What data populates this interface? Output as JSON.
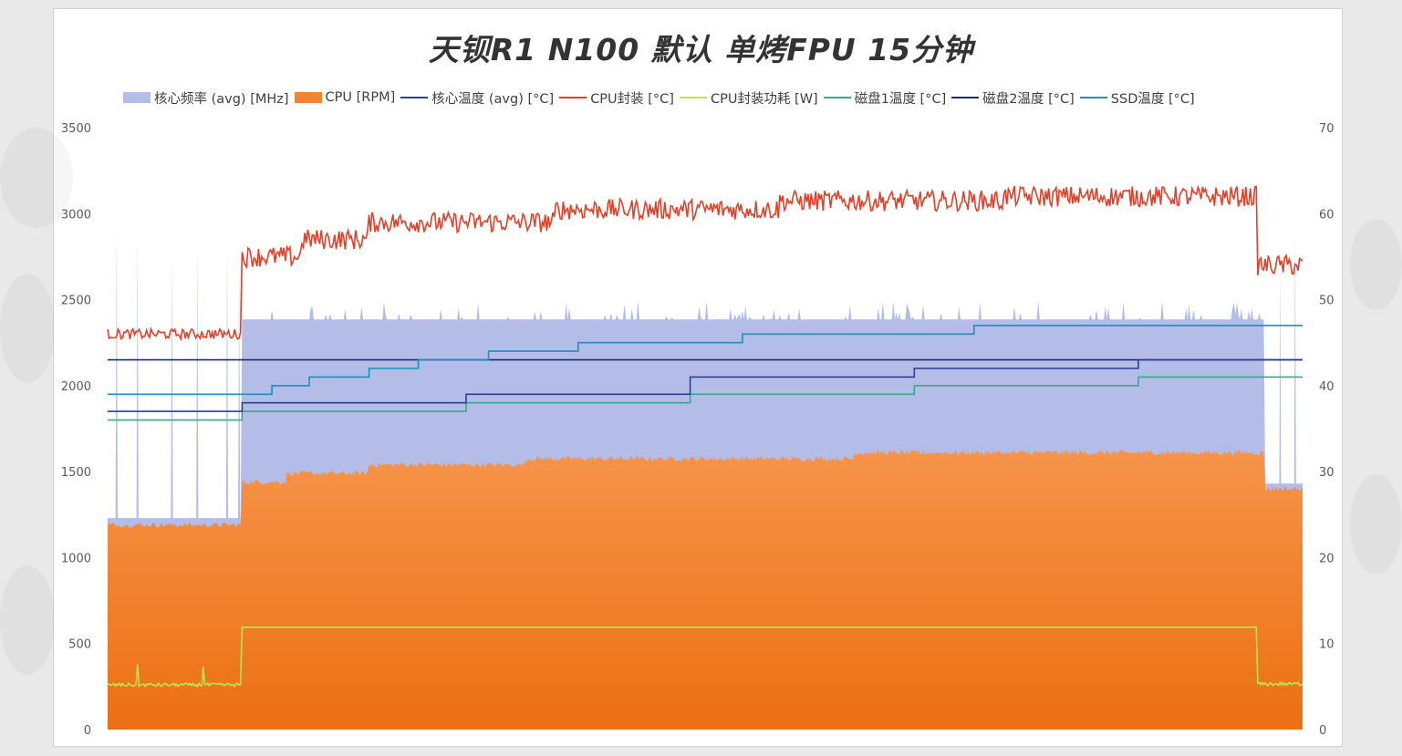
{
  "chart_data": {
    "type": "area",
    "title": "天钡R1 N100 默认 单烤FPU 15分钟",
    "xlabel": "",
    "ylabel_left": "",
    "ylabel_right": "",
    "ylim_left": [
      0,
      3500
    ],
    "ylim_right": [
      0,
      70
    ],
    "yticks_left": [
      "0",
      "500",
      "1000",
      "1500",
      "2000",
      "2500",
      "3000",
      "3500"
    ],
    "yticks_right": [
      "0",
      "10",
      "20",
      "30",
      "40",
      "50",
      "60",
      "70"
    ],
    "grid": false,
    "legend_position": "top",
    "x_points": 800,
    "series": [
      {
        "name": "核心频率 (avg) [MHz]",
        "type": "area",
        "axis": "left",
        "color": "#b4bde8",
        "segments": [
          {
            "from": 0,
            "to": 90,
            "value": 1230
          },
          {
            "from": 90,
            "to": 775,
            "value": 2385
          },
          {
            "from": 775,
            "to": 800,
            "value": 1430
          }
        ],
        "spikes": [
          {
            "x": 6,
            "value": 2900
          },
          {
            "x": 20,
            "value": 2850
          },
          {
            "x": 43,
            "value": 2750
          },
          {
            "x": 60,
            "value": 2800
          },
          {
            "x": 80,
            "value": 2820
          },
          {
            "x": 88,
            "value": 2700
          },
          {
            "x": 785,
            "value": 2700
          },
          {
            "x": 795,
            "value": 2880
          }
        ]
      },
      {
        "name": "CPU [RPM]",
        "type": "area",
        "axis": "left",
        "color": "#f28534",
        "segments": [
          {
            "from": 0,
            "to": 90,
            "value": 1190
          },
          {
            "from": 90,
            "to": 120,
            "value": 1440
          },
          {
            "from": 120,
            "to": 175,
            "value": 1490
          },
          {
            "from": 175,
            "to": 280,
            "value": 1540
          },
          {
            "from": 280,
            "to": 500,
            "value": 1575
          },
          {
            "from": 500,
            "to": 775,
            "value": 1610
          },
          {
            "from": 775,
            "to": 800,
            "value": 1400
          }
        ]
      },
      {
        "name": "核心温度 (avg) [°C]",
        "type": "step",
        "axis": "right",
        "color": "#2f3f8f",
        "steps": [
          {
            "from": 0,
            "to": 90,
            "value": 37
          },
          {
            "from": 90,
            "to": 240,
            "value": 38
          },
          {
            "from": 240,
            "to": 390,
            "value": 39
          },
          {
            "from": 390,
            "to": 540,
            "value": 41
          },
          {
            "from": 540,
            "to": 690,
            "value": 42
          },
          {
            "from": 690,
            "to": 800,
            "value": 43
          }
        ]
      },
      {
        "name": "CPU封装 [°C]",
        "type": "line",
        "axis": "right",
        "color": "#e0412a",
        "levels": [
          {
            "from": 0,
            "to": 90,
            "value": 46
          },
          {
            "from": 90,
            "to": 130,
            "value": 55
          },
          {
            "from": 130,
            "to": 175,
            "value": 57
          },
          {
            "from": 175,
            "to": 300,
            "value": 59
          },
          {
            "from": 300,
            "to": 450,
            "value": 60.5
          },
          {
            "from": 450,
            "to": 600,
            "value": 61.5
          },
          {
            "from": 600,
            "to": 770,
            "value": 62
          },
          {
            "from": 770,
            "to": 800,
            "value": 54
          }
        ]
      },
      {
        "name": "CPU封装功耗 [W]",
        "type": "line",
        "axis": "right",
        "color": "#b8e84c",
        "levels": [
          {
            "from": 0,
            "to": 90,
            "value": 5.2
          },
          {
            "from": 90,
            "to": 770,
            "value": 11.9
          },
          {
            "from": 770,
            "to": 800,
            "value": 5.3
          }
        ]
      },
      {
        "name": "磁盘1温度 [°C]",
        "type": "step",
        "axis": "right",
        "color": "#3aa88a",
        "steps": [
          {
            "from": 0,
            "to": 90,
            "value": 36
          },
          {
            "from": 90,
            "to": 240,
            "value": 37
          },
          {
            "from": 240,
            "to": 390,
            "value": 38
          },
          {
            "from": 390,
            "to": 540,
            "value": 39
          },
          {
            "from": 540,
            "to": 690,
            "value": 40
          },
          {
            "from": 690,
            "to": 800,
            "value": 41
          }
        ]
      },
      {
        "name": "磁盘2温度 [°C]",
        "type": "step",
        "axis": "right",
        "color": "#1f2c6e",
        "steps": [
          {
            "from": 0,
            "to": 800,
            "value": 43
          }
        ]
      },
      {
        "name": "SSD温度 [°C]",
        "type": "step",
        "axis": "right",
        "color": "#1b8fbf",
        "steps": [
          {
            "from": 0,
            "to": 110,
            "value": 39
          },
          {
            "from": 110,
            "to": 135,
            "value": 40
          },
          {
            "from": 135,
            "to": 175,
            "value": 41
          },
          {
            "from": 175,
            "to": 208,
            "value": 42
          },
          {
            "from": 208,
            "to": 255,
            "value": 43
          },
          {
            "from": 255,
            "to": 315,
            "value": 44
          },
          {
            "from": 315,
            "to": 425,
            "value": 45
          },
          {
            "from": 425,
            "to": 580,
            "value": 46
          },
          {
            "from": 580,
            "to": 800,
            "value": 47
          }
        ]
      }
    ]
  },
  "colors": {
    "frequency": "#b4bde8",
    "fan": "#f28534",
    "core_temp": "#2f3f8f",
    "package_temp": "#e0412a",
    "package_power": "#b8e84c",
    "disk1": "#3aa88a",
    "disk2": "#1f2c6e",
    "ssd": "#1b8fbf"
  }
}
